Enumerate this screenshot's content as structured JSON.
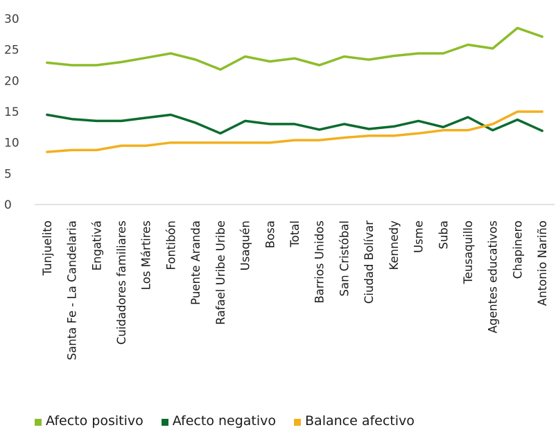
{
  "chart_data": {
    "type": "line",
    "categories": [
      "Tunjuelito",
      "Santa Fe - La Candelaria",
      "Engativá",
      "Cuidadores familiares",
      "Los Mártires",
      "Fontibón",
      "Puente Aranda",
      "Rafael Uribe Uribe",
      "Usaquén",
      "Bosa",
      "Total",
      "Barrios Unidos",
      "San Cristóbal",
      "Ciudad Bolívar",
      "Kennedy",
      "Usme",
      "Suba",
      "Teusaquillo",
      "Agentes educativos",
      "Chapinero",
      "Antonio Nariño"
    ],
    "series": [
      {
        "name": "Afecto positivo",
        "color": "#8cbd2a",
        "values": [
          22.9,
          22.5,
          22.5,
          23.0,
          23.7,
          24.4,
          23.4,
          21.8,
          23.9,
          23.1,
          23.6,
          22.5,
          23.9,
          23.4,
          24.0,
          24.4,
          24.4,
          25.8,
          25.2,
          28.5,
          27.1
        ]
      },
      {
        "name": "Afecto negativo",
        "color": "#0b6b2e",
        "values": [
          14.5,
          13.8,
          13.5,
          13.5,
          14.0,
          14.5,
          13.2,
          11.5,
          13.5,
          13.0,
          13.0,
          12.1,
          13.0,
          12.2,
          12.6,
          13.5,
          12.5,
          14.1,
          12.0,
          13.7,
          11.9
        ]
      },
      {
        "name": "Balance afectivo",
        "color": "#f2b01e",
        "values": [
          8.5,
          8.8,
          8.8,
          9.5,
          9.5,
          10.0,
          10.0,
          10.0,
          10.0,
          10.0,
          10.4,
          10.4,
          10.8,
          11.1,
          11.1,
          11.5,
          12.0,
          12.0,
          13.0,
          15.0,
          15.0
        ]
      }
    ],
    "yticks": [
      "0",
      "5",
      "10",
      "15",
      "20",
      "25",
      "30"
    ],
    "ylim": [
      0,
      30
    ],
    "grid": false,
    "legend_position": "bottom"
  }
}
